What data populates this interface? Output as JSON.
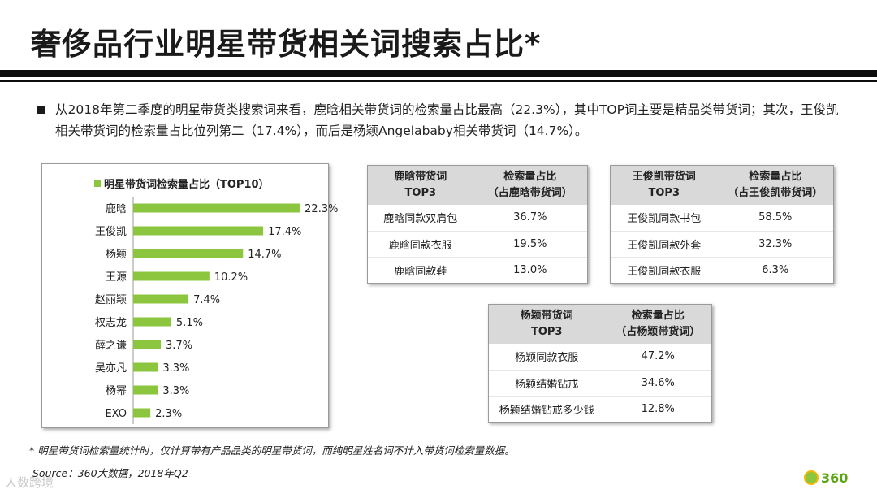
{
  "title": "奢侈品行业明星带货相关词搜索占比*",
  "summary": "从2018年第二季度的明星带货类搜索词来看，鹿晗相关带货词的检索量占比最高（22.3%），其中TOP词主要是精品类带货词；其次，王俊凯相关带货词的检索量占比位列第二（17.4%），而后是杨颖Angelababy相关带货词（14.7%）。",
  "chart_data": {
    "type": "bar",
    "orientation": "horizontal",
    "title": "明星带货词检索量占比（TOP10）",
    "legend": "top",
    "categories": [
      "鹿晗",
      "王俊凯",
      "杨颖",
      "王源",
      "赵丽颖",
      "权志龙",
      "薛之谦",
      "吴亦凡",
      "杨幂",
      "EXO"
    ],
    "values": [
      22.3,
      17.4,
      14.7,
      10.2,
      7.4,
      5.1,
      3.7,
      3.3,
      3.3,
      2.3
    ],
    "value_labels": [
      "22.3%",
      "17.4%",
      "14.7%",
      "10.2%",
      "7.4%",
      "5.1%",
      "3.7%",
      "3.3%",
      "3.3%",
      "2.3%"
    ],
    "unit": "%",
    "xlim": [
      0,
      25
    ],
    "grid": false,
    "color": "#8cc63f"
  },
  "tables": {
    "luhan": {
      "headers": [
        [
          "鹿晗带货词",
          "TOP3"
        ],
        [
          "检索量占比",
          "（占鹿晗带货词）"
        ]
      ],
      "rows": [
        [
          "鹿晗同款双肩包",
          "36.7%"
        ],
        [
          "鹿晗同款衣服",
          "19.5%"
        ],
        [
          "鹿晗同款鞋",
          "13.0%"
        ]
      ]
    },
    "wangjunkai": {
      "headers": [
        [
          "王俊凯带货词",
          "TOP3"
        ],
        [
          "检索量占比",
          "（占王俊凯带货词）"
        ]
      ],
      "rows": [
        [
          "王俊凯同款书包",
          "58.5%"
        ],
        [
          "王俊凯同款外套",
          "32.3%"
        ],
        [
          "王俊凯同款衣服",
          "6.3%"
        ]
      ]
    },
    "yangying": {
      "headers": [
        [
          "杨颖带货词",
          "TOP3"
        ],
        [
          "检索量占比",
          "（占杨颖带货词）"
        ]
      ],
      "rows": [
        [
          "杨颖同款衣服",
          "47.2%"
        ],
        [
          "杨颖结婚钻戒",
          "34.6%"
        ],
        [
          "杨颖结婚钻戒多少钱",
          "12.8%"
        ]
      ]
    }
  },
  "footnote": "* 明星带货词检索量统计时，仅计算带有产品品类的明星带货词，而纯明星姓名词不计入带货词检索量数据。",
  "source": "Source：360大数据，2018年Q2",
  "watermark": "人数跨境",
  "logo": "360"
}
